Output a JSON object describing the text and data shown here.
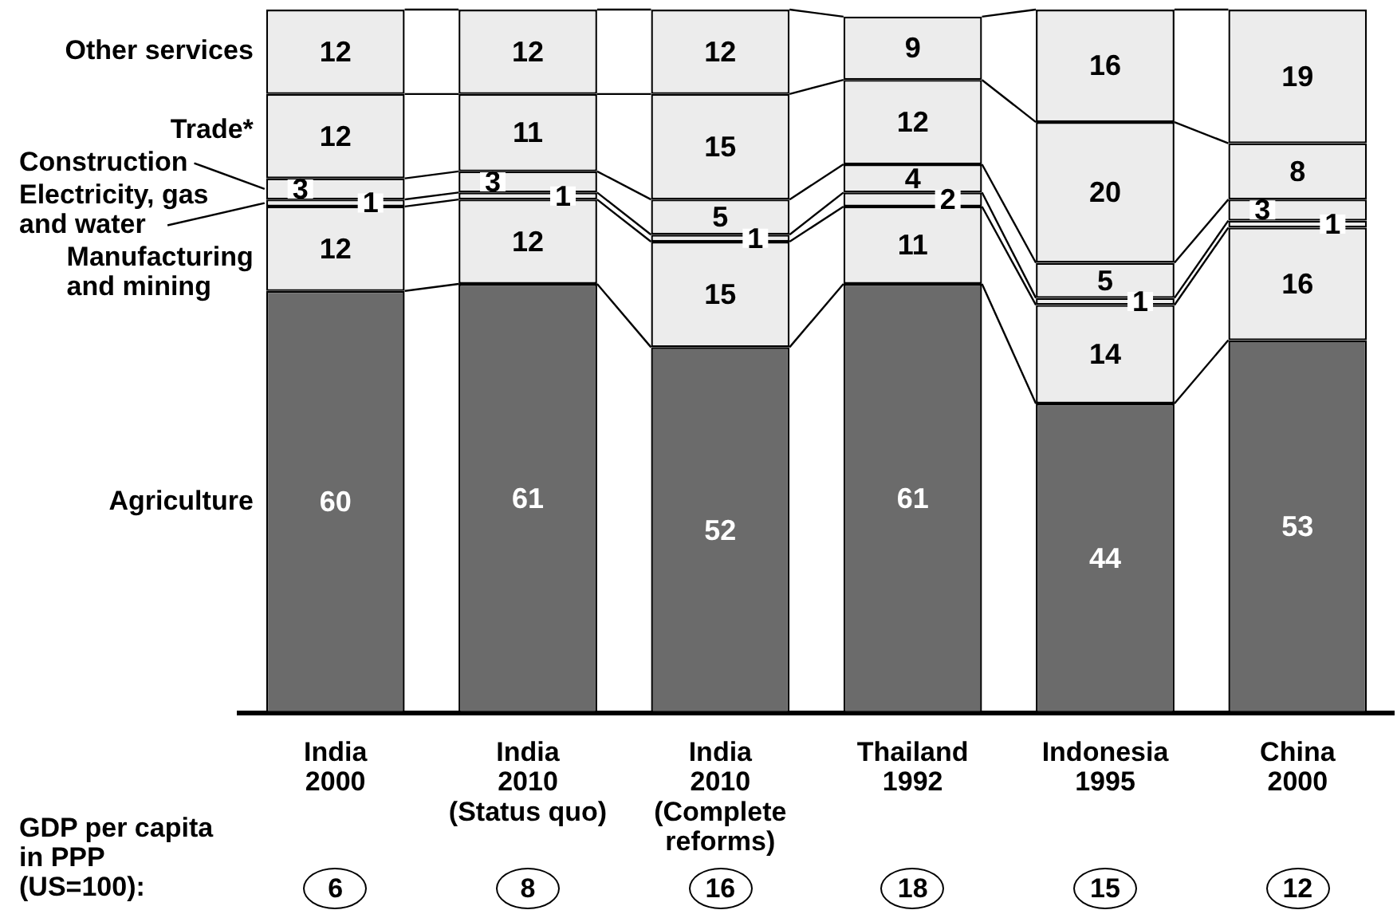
{
  "chart_data": {
    "type": "bar",
    "stacked": true,
    "tick_labels": "x",
    "data_labels": true,
    "categories": [
      "India\n2000",
      "India\n2010\n(Status quo)",
      "India\n2010\n(Complete\nreforms)",
      "Thailand\n1992",
      "Indonesia\n1995",
      "China\n2000"
    ],
    "series": [
      {
        "name": "Agriculture",
        "color": "#6b6b6b",
        "values": [
          60,
          61,
          52,
          61,
          44,
          53
        ]
      },
      {
        "name": "Manufacturing\nand mining",
        "color": "#ececec",
        "values": [
          12,
          12,
          15,
          11,
          14,
          16
        ]
      },
      {
        "name": "Electricity, gas\nand water",
        "color": "#ececec",
        "values": [
          1,
          1,
          1,
          2,
          1,
          1
        ]
      },
      {
        "name": "Construction",
        "color": "#ececec",
        "values": [
          3,
          3,
          5,
          4,
          5,
          3
        ]
      },
      {
        "name": "Trade*",
        "color": "#ececec",
        "values": [
          12,
          11,
          15,
          12,
          20,
          8
        ]
      },
      {
        "name": "Other services",
        "color": "#ececec",
        "values": [
          12,
          12,
          12,
          9,
          16,
          19
        ]
      }
    ],
    "annotations": [
      "GDP per capita\nin PPP\n(US=100):",
      "6",
      "8",
      "16",
      "18",
      "15",
      "12"
    ]
  }
}
